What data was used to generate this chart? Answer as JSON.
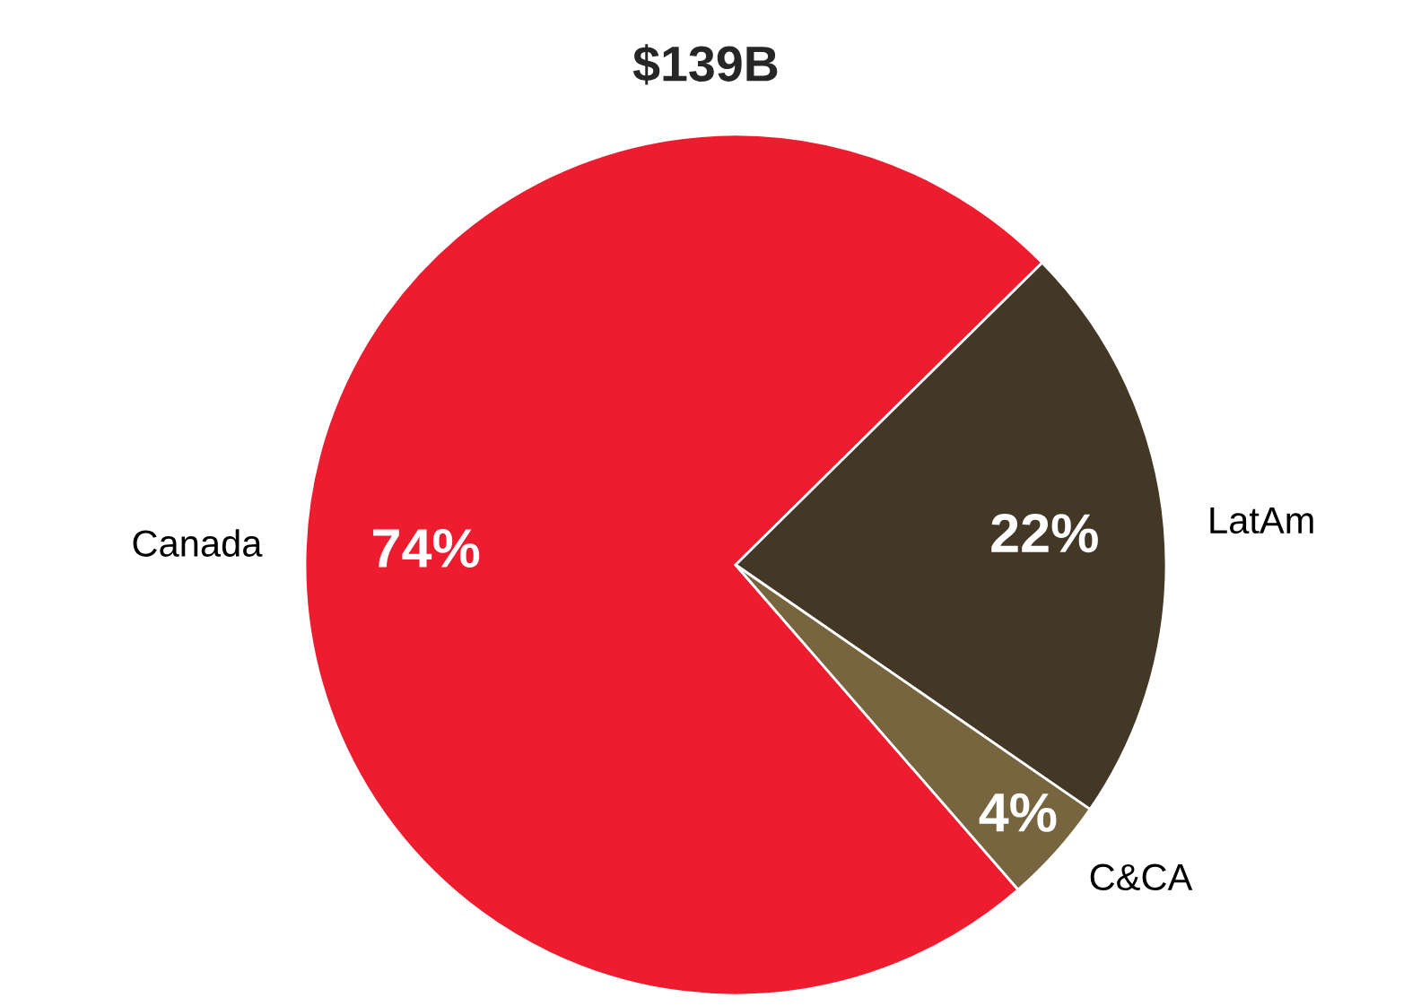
{
  "chart_data": {
    "type": "pie",
    "title": "$139B",
    "categories": [
      "Canada",
      "LatAm",
      "C&CA"
    ],
    "values": [
      74,
      22,
      4
    ],
    "value_labels": [
      "74%",
      "22%",
      "4%"
    ],
    "colors": [
      "#ed1c2e",
      "#433726",
      "#76653f"
    ]
  }
}
